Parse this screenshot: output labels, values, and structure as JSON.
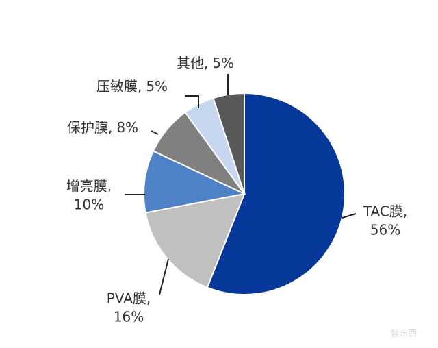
{
  "chart_data": {
    "type": "pie",
    "categories": [
      "TAC膜,",
      "PVA膜,",
      "增亮膜,",
      "保护膜,",
      "压敏膜,",
      "其他,"
    ],
    "values": [
      56,
      16,
      10,
      8,
      5,
      5
    ],
    "value_labels": [
      "56%",
      "16%",
      "10%",
      "8%",
      "5%",
      "5%"
    ],
    "colors": [
      "#06389a",
      "#c0c0c0",
      "#4f81c6",
      "#808080",
      "#c7d7ef",
      "#595959"
    ],
    "start_angle": 0,
    "direction": "clockwise"
  },
  "watermark": "智东西"
}
